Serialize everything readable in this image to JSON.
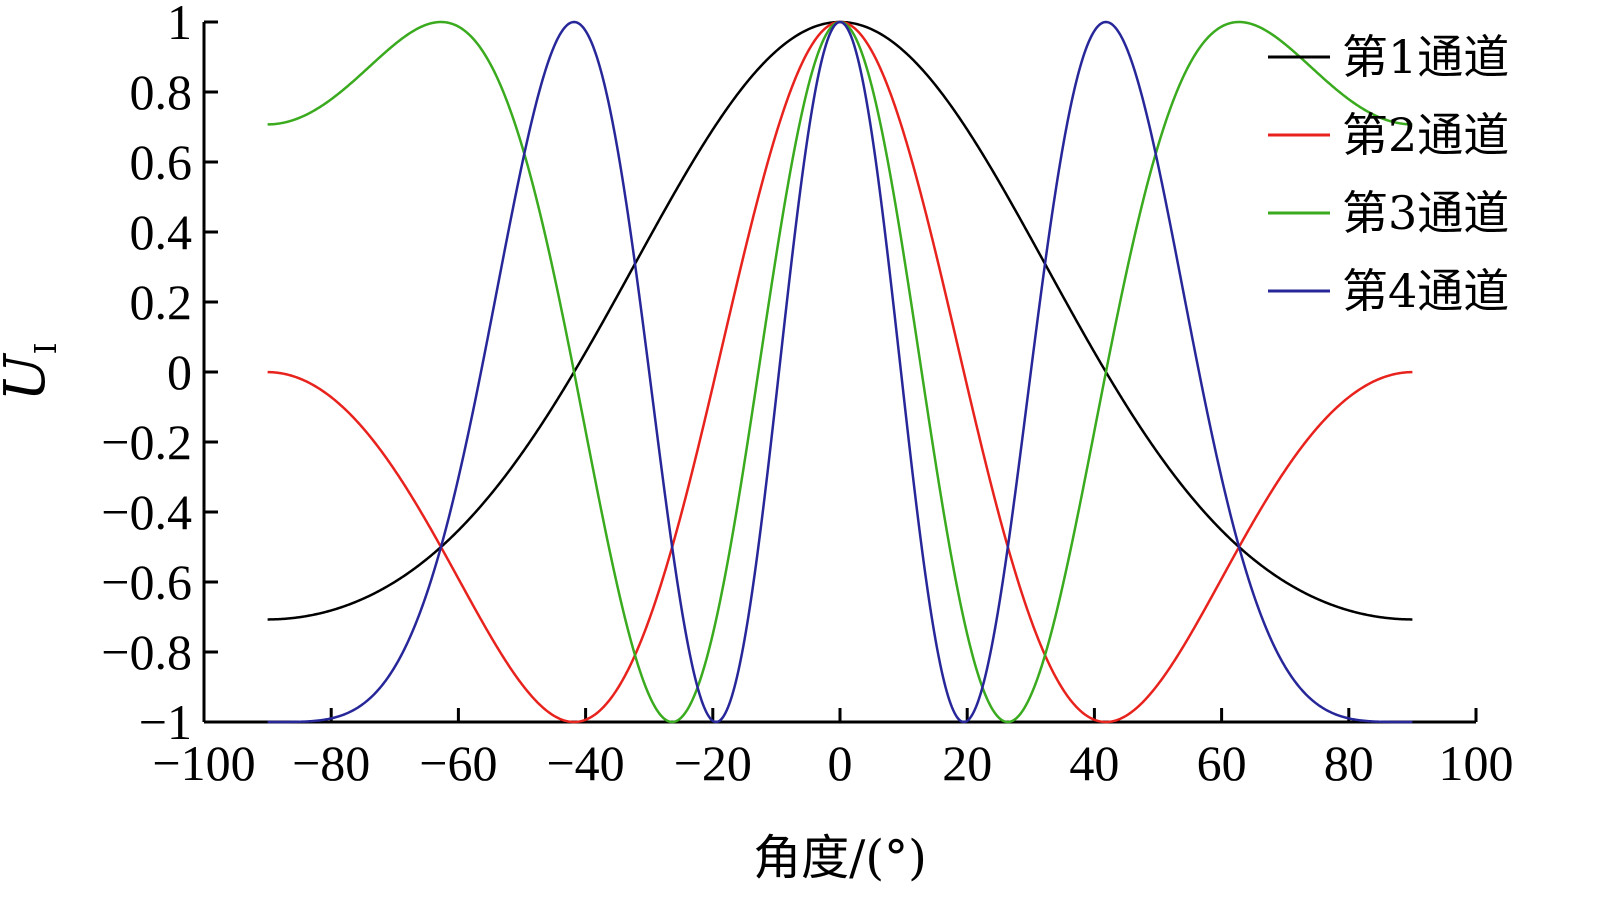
{
  "chart_data": {
    "type": "line",
    "xlabel": "角度/(°)",
    "ylabel": {
      "main": "U",
      "sub": "I"
    },
    "xlim": [
      -100,
      100
    ],
    "ylim": [
      -1,
      1
    ],
    "xticks": [
      -100,
      -80,
      -60,
      -40,
      -20,
      0,
      20,
      40,
      60,
      80,
      100
    ],
    "yticks": [
      -1,
      -0.8,
      -0.6,
      -0.4,
      -0.2,
      0,
      0.2,
      0.4,
      0.6,
      0.8,
      1
    ],
    "xtick_labels": [
      "−100",
      "−80",
      "−60",
      "−40",
      "−20",
      "0",
      "20",
      "40",
      "60",
      "80",
      "100"
    ],
    "ytick_labels": [
      "−1",
      "−0.8",
      "−0.6",
      "−0.4",
      "−0.2",
      "0",
      "0.2",
      "0.4",
      "0.6",
      "0.8",
      "1"
    ],
    "grid": false,
    "legend_position": "top-right",
    "x_domain": [
      -90,
      90
    ],
    "series": [
      {
        "name": "第1通道",
        "color": "#000000",
        "harmonic": 1,
        "phase_scale": 2.356
      },
      {
        "name": "第2通道",
        "color": "#e8221c",
        "harmonic": 2,
        "phase_scale": 2.356
      },
      {
        "name": "第3通道",
        "color": "#3aaa1e",
        "harmonic": 3,
        "phase_scale": 2.356
      },
      {
        "name": "第4通道",
        "color": "#27279a",
        "harmonic": 4,
        "phase_scale": 2.356
      }
    ],
    "notes": "Each series: y = cos(harmonic * phase_scale * sin(angle)), angle in degrees from -90 to 90."
  }
}
